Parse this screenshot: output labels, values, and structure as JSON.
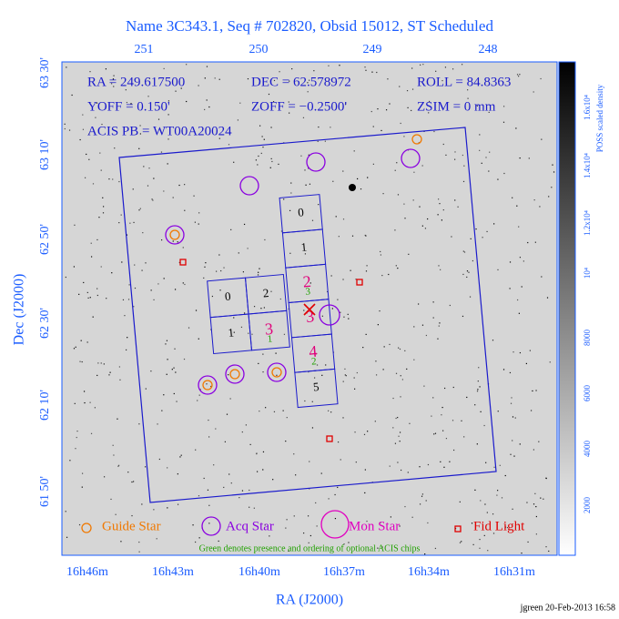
{
  "title": "Name 3C343.1, Seq # 702820, Obsid 15012, ST Scheduled",
  "top_ticks": [
    "251",
    "250",
    "249",
    "248"
  ],
  "left_ticks": [
    "63 30'",
    "63 10'",
    "62 50'",
    "62 30'",
    "62 10'",
    "61 50'"
  ],
  "bottom_ticks": [
    "16h46m",
    "16h43m",
    "16h40m",
    "16h37m",
    "16h34m",
    "16h31m"
  ],
  "x_label": "RA (J2000)",
  "y_label": "Dec (J2000)",
  "info": [
    "RA = 249.617500",
    "DEC = 62.578972",
    "ROLL = 84.8363",
    "YOFF =   0.150'",
    "ZOFF = −0.2500'",
    "ZSIM = 0 mm",
    "ACIS PB = WT00A20024"
  ],
  "i_chips": [
    {
      "label": "0"
    },
    {
      "label": "2"
    },
    {
      "label": "1"
    },
    {
      "label": "3",
      "order": "1"
    }
  ],
  "s_chips": [
    {
      "label": "0"
    },
    {
      "label": "1"
    },
    {
      "label": "2",
      "order": "3"
    },
    {
      "label": "3"
    },
    {
      "label": "4",
      "order": "2"
    },
    {
      "label": "5"
    }
  ],
  "legend": [
    "Guide Star",
    "Acq Star",
    "Mon Star",
    "Fid Light"
  ],
  "note": "Green denotes presence and ordering of optional ACIS chips",
  "colorbar_label": "POSS scaled density",
  "colorbar_ticks": [
    "2000",
    "4000",
    "6000",
    "8000",
    "10⁴",
    "1.2x10⁴",
    "1.4x10⁴",
    "1.6x10⁴"
  ],
  "footer": "jgreen 20-Feb-2013 16:58"
}
